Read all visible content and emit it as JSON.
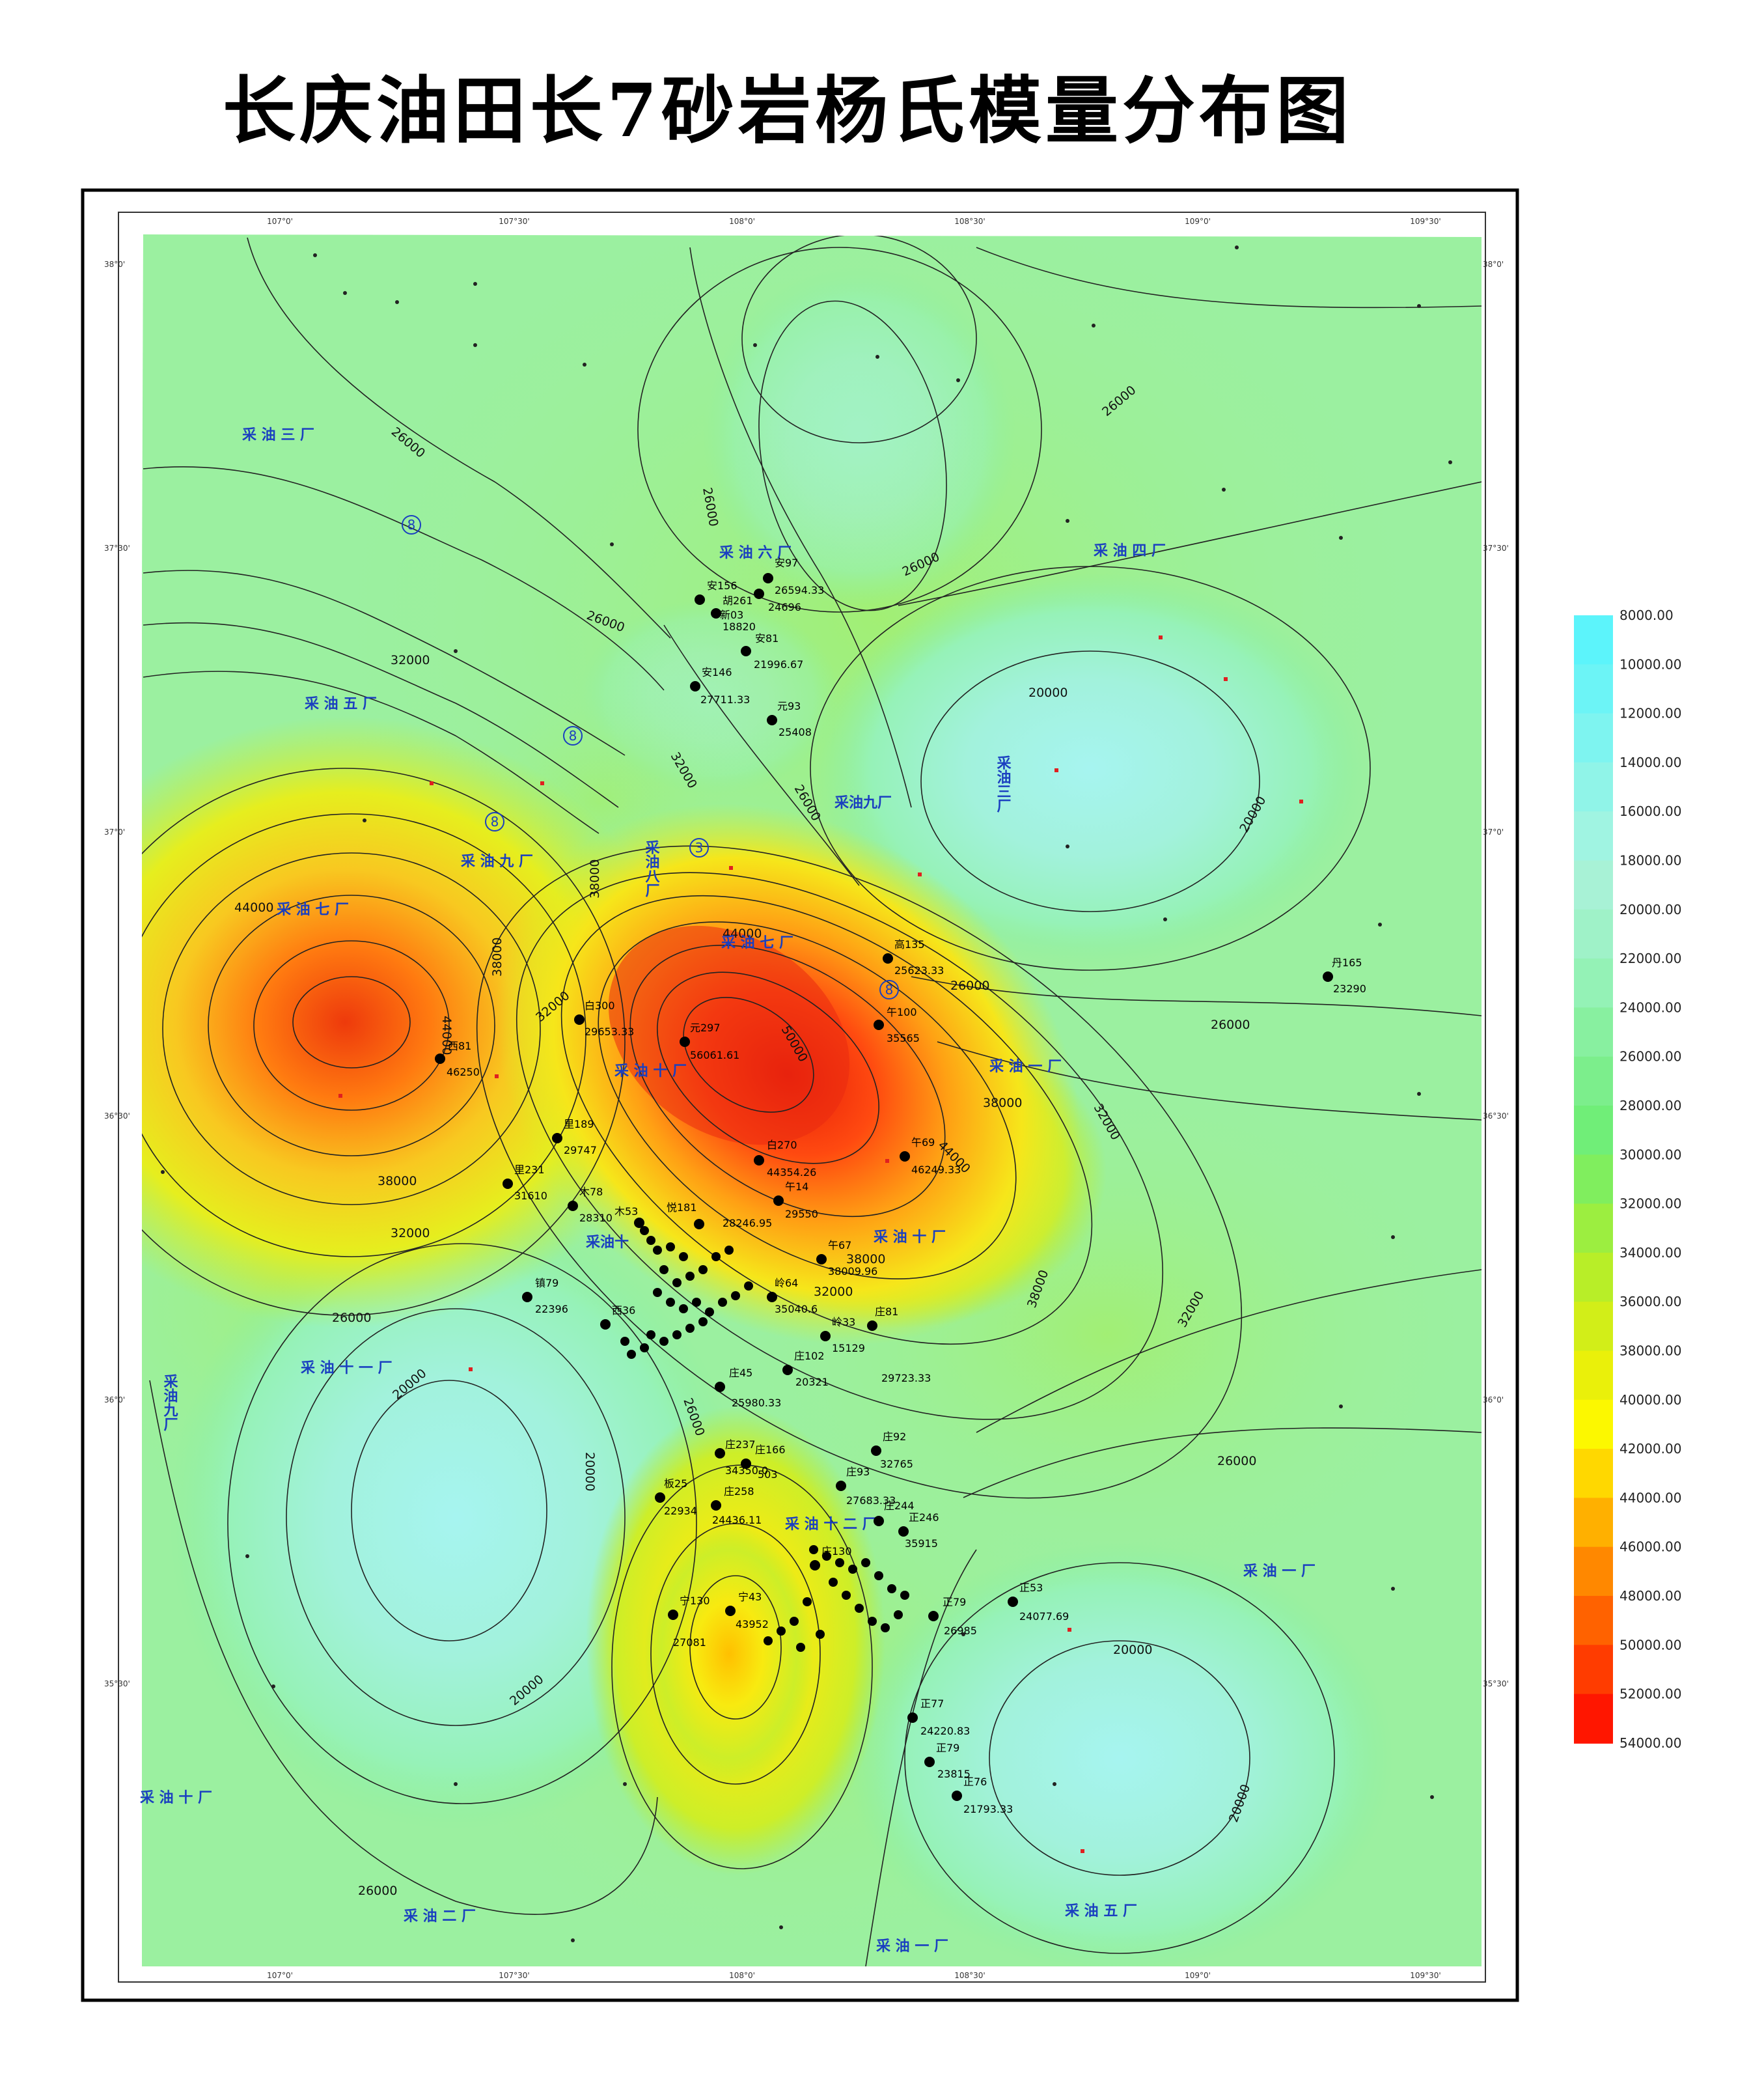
{
  "title": "长庆油田长7砂岩杨氏模量分布图",
  "colors": {
    "map_background": "#9bf0a0",
    "high_core": "#ee2a10",
    "low_core": "#9ff3ee",
    "well_dot": "#000000",
    "plant_label": "#1a3fc0",
    "town_label_red": "#e02020"
  },
  "legend": {
    "items": [
      {
        "value": "8000.00",
        "color": "#4cf4ff"
      },
      {
        "value": "10000.00",
        "color": "#5cf4fb"
      },
      {
        "value": "12000.00",
        "color": "#6cf4f6"
      },
      {
        "value": "14000.00",
        "color": "#7ef4f0"
      },
      {
        "value": "16000.00",
        "color": "#90f4e8"
      },
      {
        "value": "18000.00",
        "color": "#a0f4e2"
      },
      {
        "value": "20000.00",
        "color": "#a8f2d6"
      },
      {
        "value": "22000.00",
        "color": "#9ff2c8"
      },
      {
        "value": "24000.00",
        "color": "#94f2b6"
      },
      {
        "value": "26000.00",
        "color": "#88f0a0"
      },
      {
        "value": "28000.00",
        "color": "#7cee8c"
      },
      {
        "value": "30000.00",
        "color": "#70ee78"
      },
      {
        "value": "32000.00",
        "color": "#80ee5e"
      },
      {
        "value": "34000.00",
        "color": "#9cee40"
      },
      {
        "value": "36000.00",
        "color": "#b8ee28"
      },
      {
        "value": "38000.00",
        "color": "#d2ee18"
      },
      {
        "value": "40000.00",
        "color": "#eaf00a"
      },
      {
        "value": "42000.00",
        "color": "#fcf800"
      },
      {
        "value": "44000.00",
        "color": "#ffd800"
      },
      {
        "value": "46000.00",
        "color": "#ffb000"
      },
      {
        "value": "48000.00",
        "color": "#ff8800"
      },
      {
        "value": "50000.00",
        "color": "#ff6200"
      },
      {
        "value": "52000.00",
        "color": "#ff3c00"
      },
      {
        "value": "54000.00",
        "color": "#ff1600"
      }
    ]
  },
  "axes": {
    "top": [
      "107°0'",
      "107°30'",
      "108°0'",
      "108°30'",
      "109°0'",
      "109°30'"
    ],
    "bottom": [
      "107°0'",
      "107°30'",
      "108°0'",
      "108°30'",
      "109°0'",
      "109°30'"
    ],
    "left": [
      "38°0'",
      "37°30'",
      "37°0'",
      "36°30'",
      "36°0'",
      "35°30'"
    ],
    "right": [
      "38°0'",
      "37°30'",
      "37°0'",
      "36°30'",
      "36°0'",
      "35°30'"
    ]
  },
  "contour_labels": [
    "26000",
    "26000",
    "26000",
    "26000",
    "26000",
    "26000",
    "26000",
    "26000",
    "26000",
    "26000",
    "26000",
    "26000",
    "32000",
    "32000",
    "32000",
    "32000",
    "32000",
    "32000",
    "32000",
    "38000",
    "38000",
    "38000",
    "38000",
    "38000",
    "38000",
    "44000",
    "44000",
    "44000",
    "44000",
    "50000",
    "20000",
    "20000",
    "20000",
    "20000",
    "20000",
    "20000",
    "20000"
  ],
  "plants": [
    "采 油 三 厂",
    "采 油 六 厂",
    "采 油 四 厂",
    "采 油 五 厂",
    "采油九厂",
    "采油三厂",
    "采 油 九 厂",
    "采油八厂",
    "采 油 七 厂",
    "采 油 七 厂",
    "采 油 一 厂",
    "采 油 十 厂",
    "采 油 十 厂",
    "采 油 十 一 厂",
    "采油九厂",
    "采 油 十 二 厂",
    "采 油 一 厂",
    "采 油 十 厂",
    "采 油 二 厂",
    "采 油 一 厂",
    "采 油 五 厂",
    "采油十"
  ],
  "circled_numbers": [
    "8",
    "8",
    "8",
    "3",
    "8"
  ],
  "wells": [
    {
      "name": "安97",
      "value": "26594.33"
    },
    {
      "name": "胡261",
      "value": "24696"
    },
    {
      "name": "安156",
      "value": ""
    },
    {
      "name": "新03",
      "value": "18820"
    },
    {
      "name": "安81",
      "value": "21996.67"
    },
    {
      "name": "安146",
      "value": "27711.33"
    },
    {
      "name": "元93",
      "value": "25408"
    },
    {
      "name": "高135",
      "value": "25623.33"
    },
    {
      "name": "丹165",
      "value": "23290"
    },
    {
      "name": "午100",
      "value": "35565"
    },
    {
      "name": "白300",
      "value": "29653.33"
    },
    {
      "name": "元297",
      "value": "56061.61"
    },
    {
      "name": "西81",
      "value": "46250"
    },
    {
      "name": "午69",
      "value": "46249.33"
    },
    {
      "name": "里189",
      "value": "29747"
    },
    {
      "name": "里231",
      "value": "31610"
    },
    {
      "name": "白270",
      "value": "44354.26"
    },
    {
      "name": "木78",
      "value": "28310"
    },
    {
      "name": "午14",
      "value": "29550"
    },
    {
      "name": "木53",
      "value": ""
    },
    {
      "name": "悦181",
      "value": "28246.95"
    },
    {
      "name": "午67",
      "value": "38009.96"
    },
    {
      "name": "镇79",
      "value": "22396"
    },
    {
      "name": "西36",
      "value": ""
    },
    {
      "name": "岭64",
      "value": "35040.6"
    },
    {
      "name": "庄81",
      "value": "29723.33"
    },
    {
      "name": "岭33",
      "value": "15129"
    },
    {
      "name": "庄102",
      "value": "20321"
    },
    {
      "name": "庄45",
      "value": "25980.33"
    },
    {
      "name": "庄92",
      "value": "32765"
    },
    {
      "name": "庄237",
      "value": "34350.0"
    },
    {
      "name": "庄166",
      "value": "503"
    },
    {
      "name": "庄93",
      "value": "27683.33"
    },
    {
      "name": "板25",
      "value": "22934"
    },
    {
      "name": "庄258",
      "value": "24436.11"
    },
    {
      "name": "庄244",
      "value": ""
    },
    {
      "name": "正246",
      "value": "35915"
    },
    {
      "name": "庄130",
      "value": ""
    },
    {
      "name": "宁130",
      "value": "27081"
    },
    {
      "name": "宁43",
      "value": "43952"
    },
    {
      "name": "正53",
      "value": "24077.69"
    },
    {
      "name": "正79",
      "value": "26985"
    },
    {
      "name": "正77",
      "value": "24220.83"
    },
    {
      "name": "正79",
      "value": "23815"
    },
    {
      "name": "正76",
      "value": "21793.33"
    }
  ]
}
